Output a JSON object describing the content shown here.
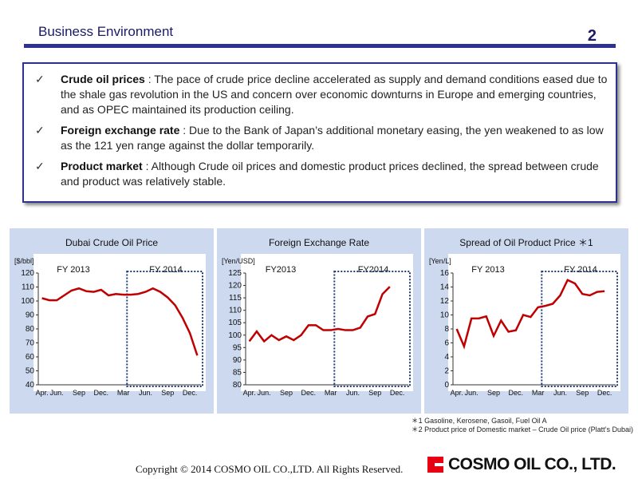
{
  "header": {
    "title": "Business Environment",
    "page_number": "2"
  },
  "bullets": [
    {
      "label": "Crude oil prices",
      "text": " : The pace of crude price decline accelerated as supply and demand conditions eased due to the shale gas revolution in the US and concern over economic downturns in Europe and emerging countries, and as OPEC maintained its production ceiling."
    },
    {
      "label": "Foreign exchange rate",
      "text": " : Due to the Bank of Japan’s additional monetary easing, the yen weakened to as low as the 121 yen range against the dollar temporarily."
    },
    {
      "label": "Product market",
      "text": " :   Although Crude oil prices and domestic product prices declined, the spread between crude and product was relatively stable."
    }
  ],
  "chart_data": [
    {
      "type": "line",
      "title": "Dubai Crude Oil Price",
      "unit": "[$/bbl]",
      "fy_labels": [
        "FY 2013",
        "FY 2014"
      ],
      "ylim": [
        40,
        120
      ],
      "yticks": [
        40,
        50,
        60,
        70,
        80,
        90,
        100,
        110,
        120
      ],
      "xtick_labels": [
        "Apr.",
        "Jun.",
        "Sep",
        "Dec.",
        "Mar",
        "Jun.",
        "Sep",
        "Dec."
      ],
      "xtick_index": [
        0,
        2,
        5,
        8,
        11,
        14,
        17,
        20
      ],
      "values": [
        102,
        100.5,
        100.5,
        104,
        107.5,
        109,
        107,
        106.5,
        108,
        104,
        105,
        104.5,
        104.5,
        105,
        106.5,
        109,
        106.5,
        102.5,
        97,
        88,
        77,
        61
      ],
      "fy2014_start_index": 12,
      "color": "#c00000"
    },
    {
      "type": "line",
      "title": "Foreign Exchange Rate",
      "unit": "[Yen/USD]",
      "fy_labels": [
        "FY2013",
        "FY2014"
      ],
      "ylim": [
        80,
        125
      ],
      "yticks": [
        80,
        85,
        90,
        95,
        100,
        105,
        110,
        115,
        120,
        125
      ],
      "xtick_labels": [
        "Apr.",
        "Jun.",
        "Sep",
        "Dec.",
        "Mar",
        "Jun.",
        "Sep",
        "Dec."
      ],
      "xtick_index": [
        0,
        2,
        5,
        8,
        11,
        14,
        17,
        20
      ],
      "values": [
        97.5,
        101.5,
        97.5,
        100,
        98,
        99.5,
        98,
        100,
        104,
        104,
        102,
        102,
        102.5,
        102,
        102,
        103,
        107.5,
        108.5,
        116.5,
        119.5
      ],
      "fy2014_start_index": 12,
      "color": "#c00000"
    },
    {
      "type": "line",
      "title": "Spread of Oil Product Price ＊1",
      "unit": "[Yen/L]",
      "fy_labels": [
        "FY 2013",
        "FY 2014"
      ],
      "ylim": [
        0,
        16
      ],
      "yticks": [
        0,
        2,
        4,
        6,
        8,
        10,
        12,
        14,
        16
      ],
      "xtick_labels": [
        "Apr.",
        "Jun.",
        "Sep",
        "Dec.",
        "Mar",
        "Jun.",
        "Sep",
        "Dec."
      ],
      "xtick_index": [
        0,
        2,
        5,
        8,
        11,
        14,
        17,
        20
      ],
      "values": [
        8,
        5.5,
        9.5,
        9.5,
        9.8,
        7,
        9.2,
        7.6,
        7.8,
        10,
        9.7,
        11.1,
        11.3,
        11.6,
        12.8,
        15,
        14.5,
        13,
        12.8,
        13.3,
        13.4
      ],
      "fy2014_start_index": 12,
      "color": "#c00000"
    }
  ],
  "footnotes": [
    "＊1 Gasoline, Kerosene, Gasoil, Fuel Oil A",
    "＊2 Product price of Domestic market – Crude Oil price (Platt’s Dubai)"
  ],
  "footer": {
    "copyright": "Copyright © 2014   COSMO OIL CO.,LTD. All Rights Reserved.",
    "logo_text": "COSMO OIL CO., LTD."
  }
}
